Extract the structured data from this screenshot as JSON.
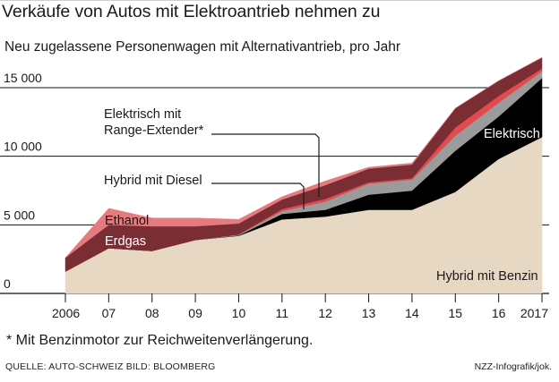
{
  "title": "Verkäufe von Autos mit Elektroantrieb nehmen zu",
  "subtitle": "Neu zugelassene Personenwagen mit Alternativantrieb, pro Jahr",
  "footnote": "* Mit Benzinmotor zur Reichweitenverlängerung.",
  "source": "QUELLE: AUTO-SCHWEIZ   BILD: BLOOMBERG",
  "credit": "NZZ-Infografik/jok.",
  "chart_data": {
    "type": "area",
    "stacked": true,
    "x": [
      2006,
      2007,
      2008,
      2009,
      2010,
      2011,
      2012,
      2013,
      2014,
      2015,
      2016,
      2017
    ],
    "x_tick_labels": [
      "2006",
      "07",
      "08",
      "09",
      "10",
      "11",
      "12",
      "13",
      "14",
      "15",
      "16",
      "2017"
    ],
    "y_ticks": [
      0,
      5000,
      10000,
      15000
    ],
    "y_tick_labels": [
      "0",
      "5 000",
      "10 000",
      "15 000"
    ],
    "ylim": [
      0,
      17200
    ],
    "grid": true,
    "series": [
      {
        "name": "Hybrid mit Benzin",
        "color": "#e6d8c3",
        "values": [
          1600,
          3300,
          3100,
          3900,
          4200,
          5400,
          5600,
          6100,
          6100,
          7400,
          9800,
          11400
        ]
      },
      {
        "name": "Elektrisch",
        "color": "#000000",
        "values": [
          0,
          0,
          0,
          0,
          30,
          400,
          500,
          1100,
          1400,
          3000,
          3100,
          4300
        ]
      },
      {
        "name": "Hybrid mit Diesel",
        "color": "#9b9b9b",
        "values": [
          0,
          0,
          0,
          0,
          70,
          200,
          600,
          800,
          800,
          1100,
          1000,
          500
        ]
      },
      {
        "name": "Elektrisch mit Range-Extender*",
        "color": "#e34a4d",
        "values": [
          0,
          0,
          0,
          0,
          0,
          150,
          200,
          100,
          100,
          600,
          500,
          200
        ]
      },
      {
        "name": "Erdgas",
        "color": "#7a2e33",
        "values": [
          1000,
          1700,
          1800,
          1000,
          800,
          700,
          1000,
          1000,
          1000,
          1400,
          1100,
          800
        ]
      },
      {
        "name": "Ethanol",
        "color": "#e57a7f",
        "values": [
          0,
          1200,
          600,
          600,
          300,
          200,
          300,
          100,
          100,
          0,
          0,
          0
        ]
      }
    ],
    "annotations": [
      "Elektrisch mit",
      "Range-Extender*",
      "Hybrid mit Diesel",
      "Ethanol",
      "Erdgas",
      "Elektrisch",
      "Hybrid mit Benzin"
    ]
  }
}
